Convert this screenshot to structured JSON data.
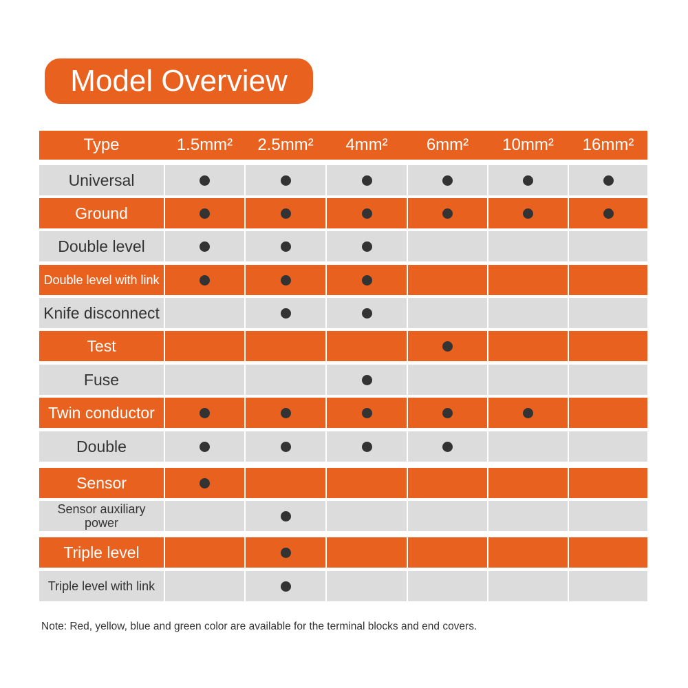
{
  "header": {
    "title": "Model Overview"
  },
  "table": {
    "columns": [
      "Type",
      "1.5mm²",
      "2.5mm²",
      "4mm²",
      "6mm²",
      "10mm²",
      "16mm²"
    ],
    "rows": [
      {
        "label": "Universal",
        "available": [
          true,
          true,
          true,
          true,
          true,
          true
        ]
      },
      {
        "label": "Ground",
        "available": [
          true,
          true,
          true,
          true,
          true,
          true
        ]
      },
      {
        "label": "Double level",
        "available": [
          true,
          true,
          true,
          false,
          false,
          false
        ]
      },
      {
        "label": "Double level with link",
        "available": [
          true,
          true,
          true,
          false,
          false,
          false
        ]
      },
      {
        "label": "Knife disconnect",
        "available": [
          false,
          true,
          true,
          false,
          false,
          false
        ]
      },
      {
        "label": "Test",
        "available": [
          false,
          false,
          false,
          true,
          false,
          false
        ]
      },
      {
        "label": "Fuse",
        "available": [
          false,
          false,
          true,
          false,
          false,
          false
        ]
      },
      {
        "label": "Twin conductor",
        "available": [
          true,
          true,
          true,
          true,
          true,
          false
        ]
      },
      {
        "label": "Double",
        "available": [
          true,
          true,
          true,
          true,
          false,
          false
        ]
      },
      {
        "label": "Sensor",
        "available": [
          true,
          false,
          false,
          false,
          false,
          false
        ]
      },
      {
        "label": "Sensor auxiliary power",
        "available": [
          false,
          true,
          false,
          false,
          false,
          false
        ]
      },
      {
        "label": "Triple level",
        "available": [
          false,
          true,
          false,
          false,
          false,
          false
        ]
      },
      {
        "label": "Triple level with link",
        "available": [
          false,
          true,
          false,
          false,
          false,
          false
        ]
      }
    ]
  },
  "note": "Note: Red, yellow, blue and green color are available for the terminal blocks and end covers."
}
